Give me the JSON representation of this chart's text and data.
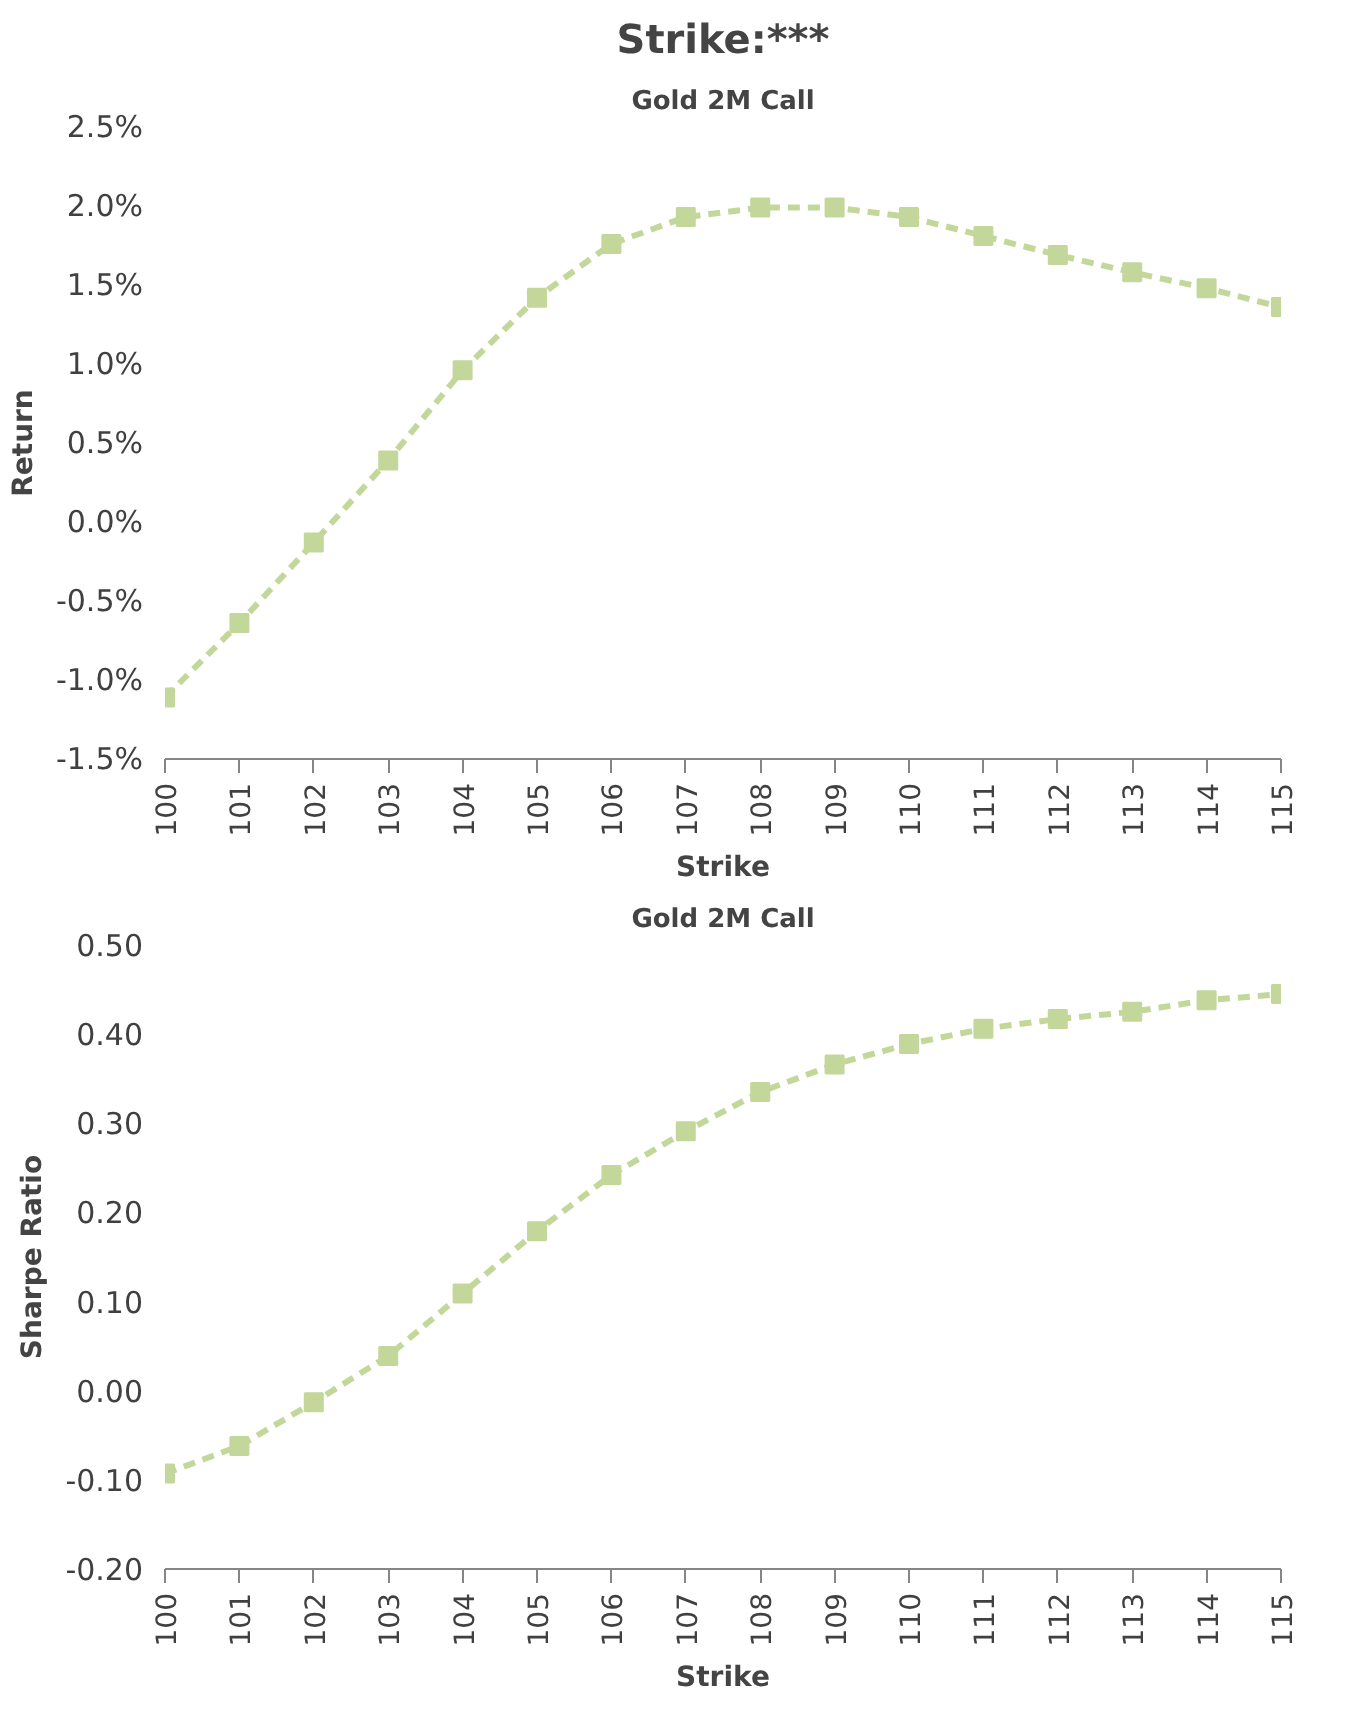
{
  "chart_data": [
    {
      "type": "line",
      "title": "Strike:***",
      "subtitle": "Gold 2M Call",
      "xlabel": "Strike",
      "ylabel": "Return",
      "categories": [
        "100",
        "101",
        "102",
        "103",
        "104",
        "105",
        "106",
        "107",
        "108",
        "109",
        "110",
        "111",
        "112",
        "113",
        "114",
        "115"
      ],
      "series": [
        {
          "color": "#c4d79b",
          "values": [
            -1.11,
            -0.64,
            -0.13,
            0.39,
            0.96,
            1.42,
            1.76,
            1.93,
            1.99,
            1.99,
            1.93,
            1.81,
            1.69,
            1.58,
            1.48,
            1.36
          ]
        }
      ],
      "ylim": [
        -1.5,
        2.5
      ],
      "yticks": [
        {
          "value": -1.5,
          "label": "-1.5%"
        },
        {
          "value": -1.0,
          "label": "-1.0%"
        },
        {
          "value": -0.5,
          "label": "-0.5%"
        },
        {
          "value": 0,
          "label": "0.0%"
        },
        {
          "value": 0.5,
          "label": "0.5%"
        },
        {
          "value": 1.0,
          "label": "1.0%"
        },
        {
          "value": 1.5,
          "label": "1.5%"
        },
        {
          "value": 2.0,
          "label": "2.0%"
        },
        {
          "value": 2.5,
          "label": "2.5%"
        }
      ],
      "grid": false,
      "marker": "square",
      "line_style": "dashed"
    },
    {
      "type": "line",
      "title": "Gold 2M Call",
      "xlabel": "Strike",
      "ylabel": "Sharpe Ratio",
      "categories": [
        "100",
        "101",
        "102",
        "103",
        "104",
        "105",
        "106",
        "107",
        "108",
        "109",
        "110",
        "111",
        "112",
        "113",
        "114",
        "115"
      ],
      "series": [
        {
          "color": "#c4d79b",
          "values": [
            -0.093,
            -0.062,
            -0.013,
            0.039,
            0.109,
            0.179,
            0.242,
            0.291,
            0.335,
            0.366,
            0.389,
            0.406,
            0.417,
            0.425,
            0.438,
            0.445
          ]
        }
      ],
      "ylim": [
        -0.2,
        0.5
      ],
      "yticks": [
        {
          "value": -0.2,
          "label": "-0.20"
        },
        {
          "value": -0.1,
          "label": "-0.10"
        },
        {
          "value": 0,
          "label": "0.00"
        },
        {
          "value": 0.1,
          "label": "0.10"
        },
        {
          "value": 0.2,
          "label": "0.20"
        },
        {
          "value": 0.3,
          "label": "0.30"
        },
        {
          "value": 0.4,
          "label": "0.40"
        },
        {
          "value": 0.5,
          "label": "0.50"
        }
      ],
      "grid": false,
      "marker": "square",
      "line_style": "dashed"
    }
  ]
}
